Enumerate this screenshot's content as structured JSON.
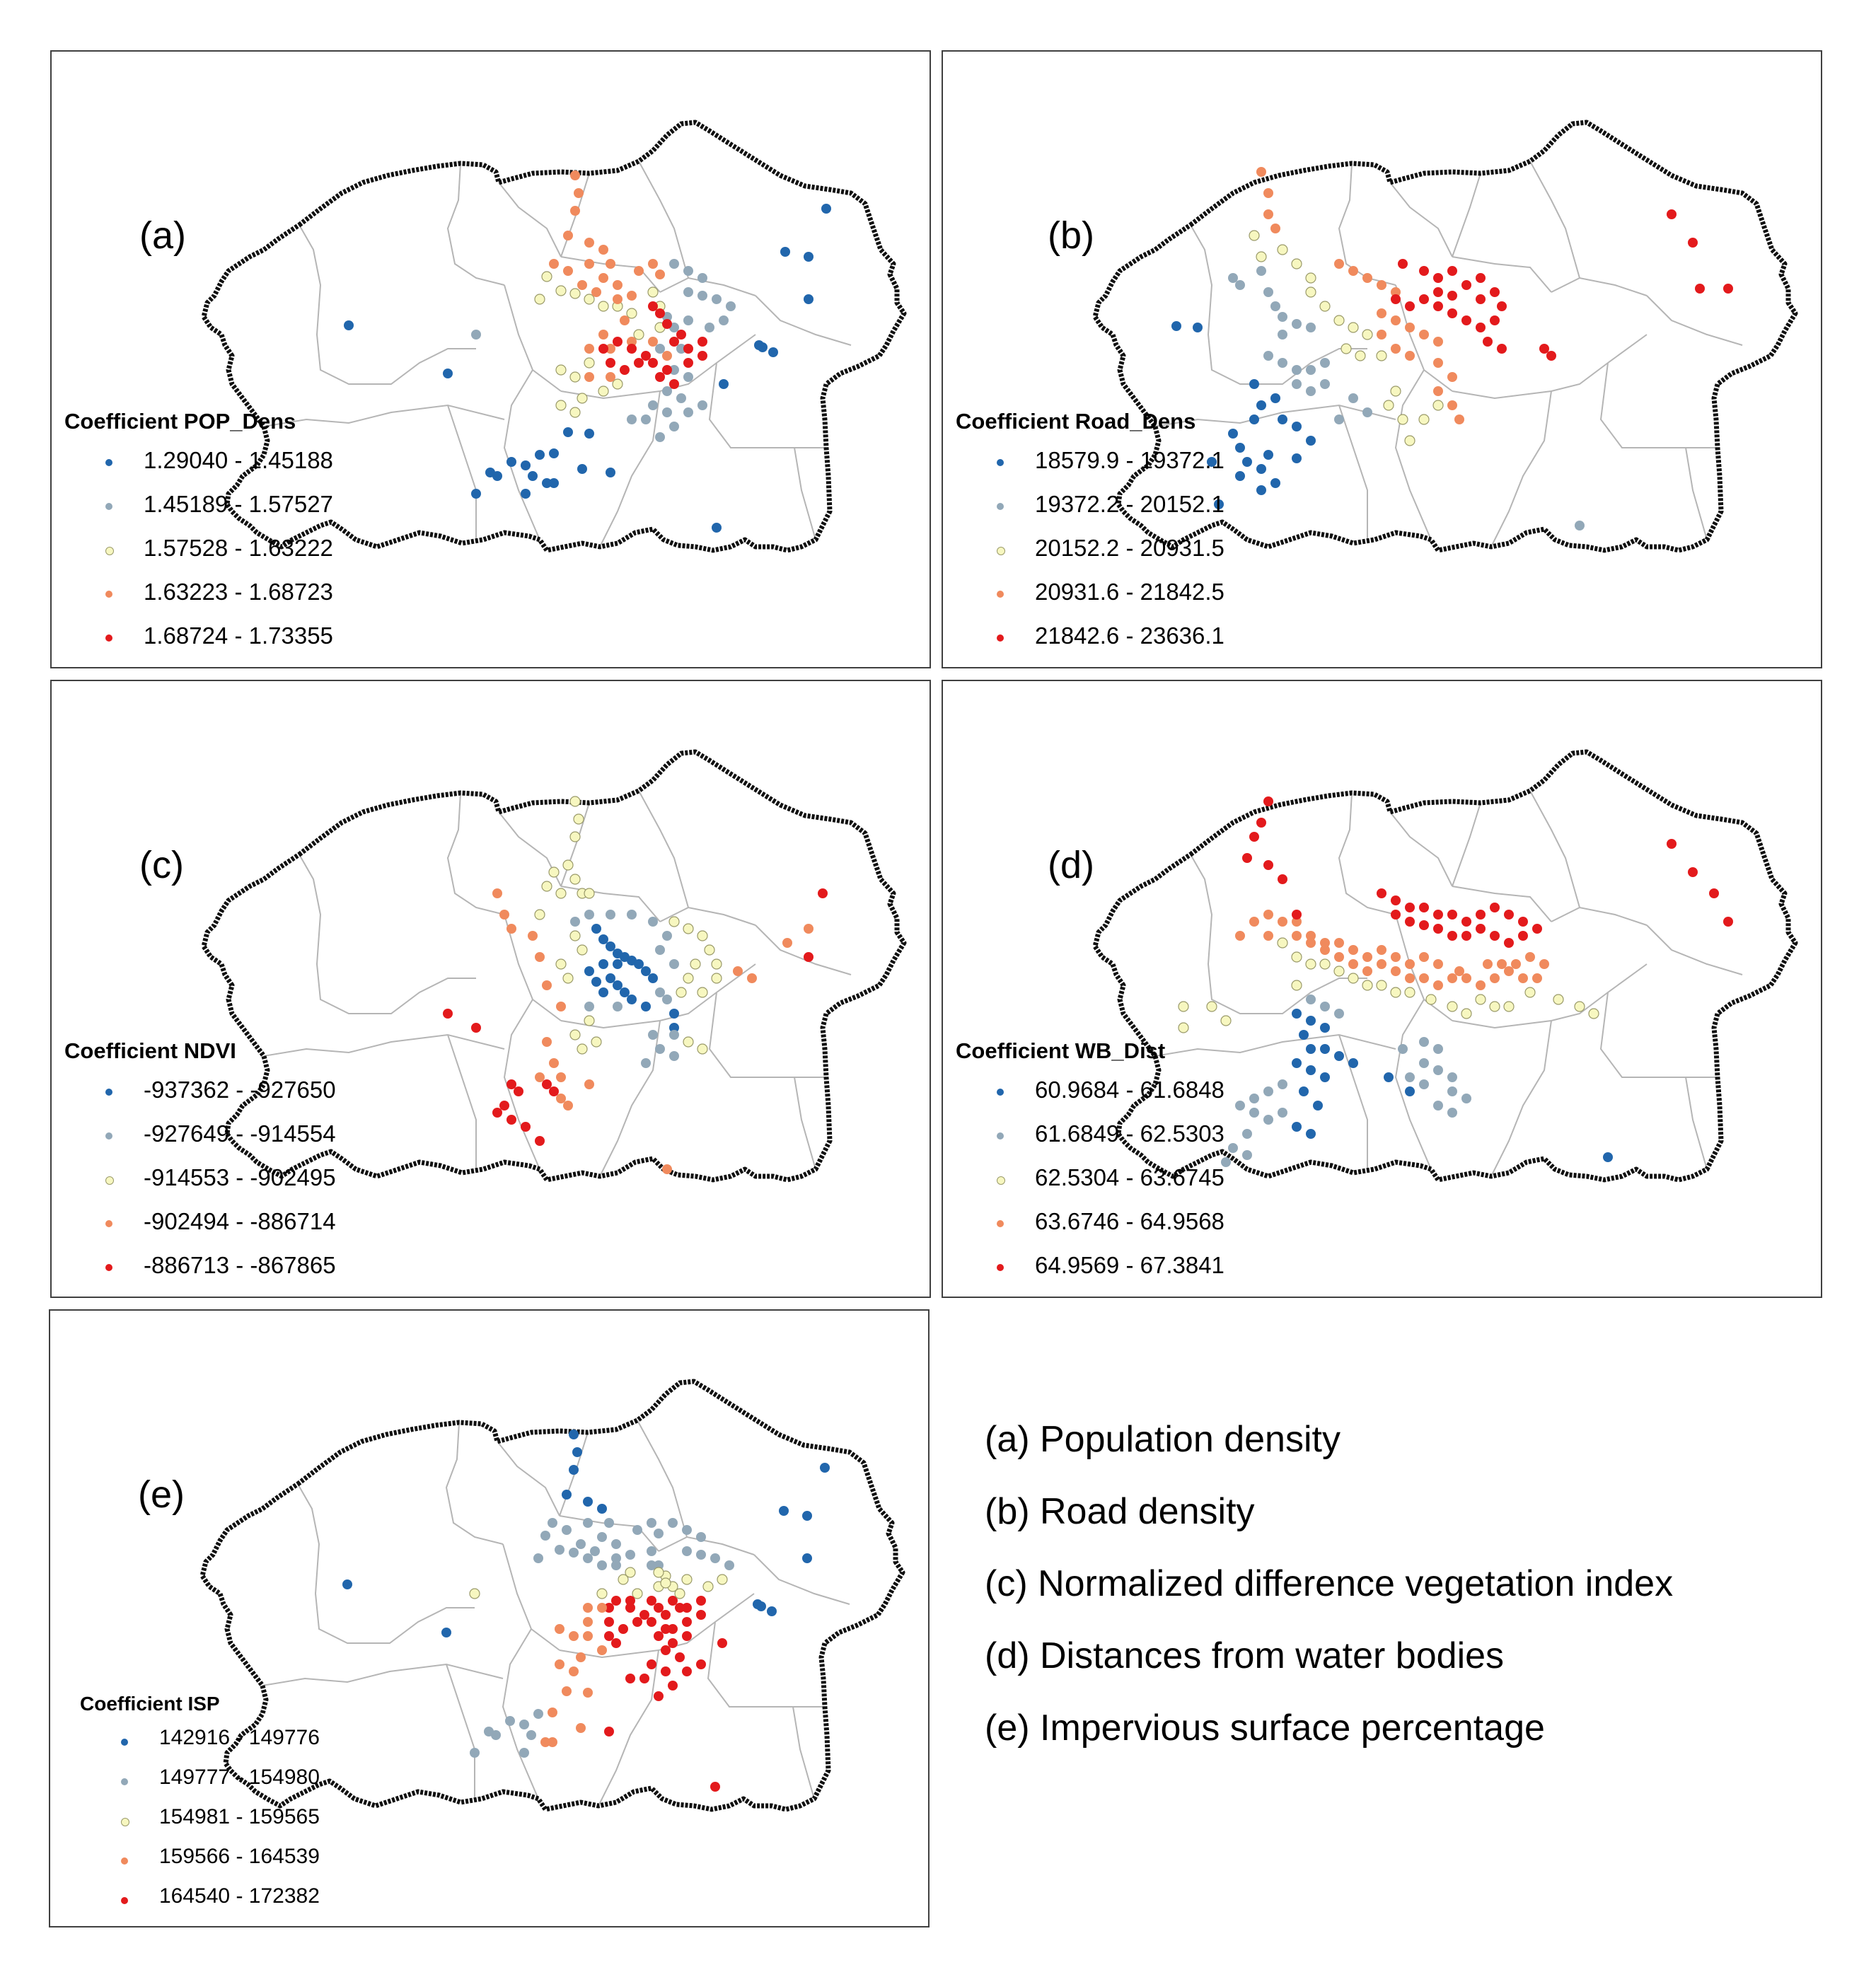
{
  "figure": {
    "panels": [
      {
        "id": "a",
        "panel_label": "(a)",
        "legend_title": "Coefficient POP_Dens",
        "classes": [
          {
            "range": "1.29040 - 1.45188",
            "color": "#2166ac"
          },
          {
            "range": "1.45189 - 1.57527",
            "color": "#92a8b8"
          },
          {
            "range": "1.57528 - 1.63222",
            "color": "#f7f7c0"
          },
          {
            "range": "1.63223 - 1.68723",
            "color": "#f08a5d"
          },
          {
            "range": "1.68724 - 1.73355",
            "color": "#e31a1c"
          }
        ]
      },
      {
        "id": "b",
        "panel_label": "(b)",
        "legend_title": "Coefficient Road_Dens",
        "classes": [
          {
            "range": "18579.9 - 19372.1",
            "color": "#2166ac"
          },
          {
            "range": "19372.2 - 20152.1",
            "color": "#92a8b8"
          },
          {
            "range": "20152.2 - 20931.5",
            "color": "#f7f7c0"
          },
          {
            "range": "20931.6 - 21842.5",
            "color": "#f08a5d"
          },
          {
            "range": "21842.6 - 23636.1",
            "color": "#e31a1c"
          }
        ]
      },
      {
        "id": "c",
        "panel_label": "(c)",
        "legend_title": "Coefficient NDVI",
        "classes": [
          {
            "range": "-937362 - -927650",
            "color": "#2166ac"
          },
          {
            "range": "-927649 - -914554",
            "color": "#92a8b8"
          },
          {
            "range": "-914553 - -902495",
            "color": "#f7f7c0"
          },
          {
            "range": "-902494 - -886714",
            "color": "#f08a5d"
          },
          {
            "range": "-886713 - -867865",
            "color": "#e31a1c"
          }
        ]
      },
      {
        "id": "d",
        "panel_label": "(d)",
        "legend_title": "Coefficient WB_Dist",
        "classes": [
          {
            "range": "60.9684 - 61.6848",
            "color": "#2166ac"
          },
          {
            "range": "61.6849 - 62.5303",
            "color": "#92a8b8"
          },
          {
            "range": "62.5304 - 63.6745",
            "color": "#f7f7c0"
          },
          {
            "range": "63.6746 - 64.9568",
            "color": "#f08a5d"
          },
          {
            "range": "64.9569 - 67.3841",
            "color": "#e31a1c"
          }
        ]
      },
      {
        "id": "e",
        "panel_label": "(e)",
        "legend_title": "Coefficient ISP",
        "classes": [
          {
            "range": "142916 - 149776",
            "color": "#2166ac"
          },
          {
            "range": "149777 - 154980",
            "color": "#92a8b8"
          },
          {
            "range": "154981 - 159565",
            "color": "#f7f7c0"
          },
          {
            "range": "159566 - 164539",
            "color": "#f08a5d"
          },
          {
            "range": "164540 - 172382",
            "color": "#e31a1c"
          }
        ]
      }
    ],
    "captions": [
      "(a) Population density",
      "(b) Road density",
      "(c) Normalized difference vegetation index",
      "(d) Distances from water bodies",
      "(e) Impervious surface percentage"
    ],
    "colors": {
      "boundary": "#111111",
      "district_lines": "#b5b5b5",
      "frame": "#404040"
    }
  }
}
